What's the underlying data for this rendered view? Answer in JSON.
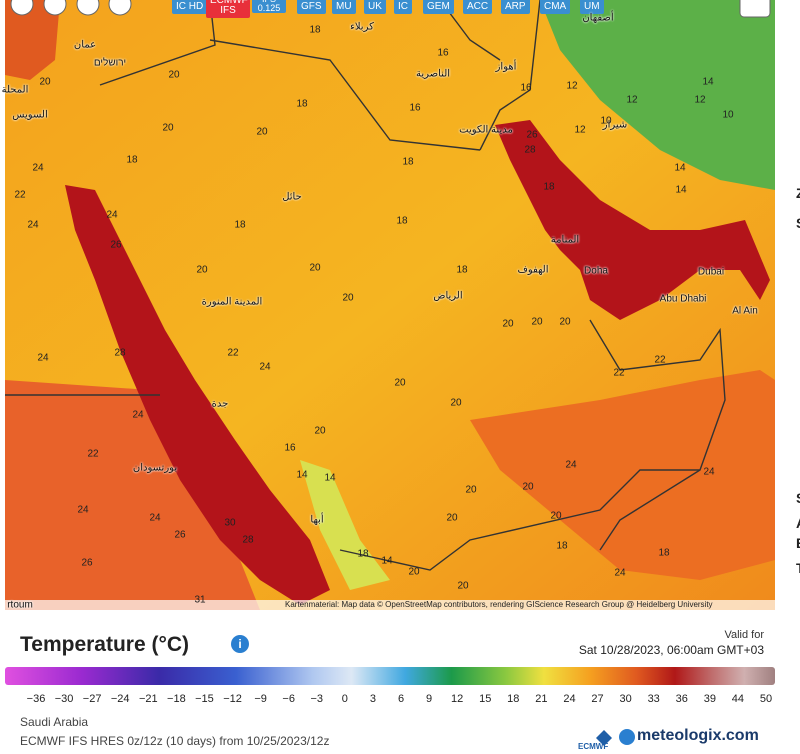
{
  "toolbar": {
    "models": [
      "IC HD",
      "ECMWF IFS",
      "IFS 0.125",
      "GFS",
      "MU",
      "UK",
      "IC",
      "GEM",
      "ACC",
      "ARP",
      "CMA",
      "UM"
    ]
  },
  "map": {
    "cities": [
      "عمان",
      "ירושלים",
      "المحلة",
      "السويس",
      "كربلاء",
      "أصفهان",
      "الناصرية",
      "أهواز",
      "شيراز",
      "مدينة الكويت",
      "حائل",
      "المنامة",
      "الهفوف",
      "Doha",
      "Dubai",
      "Abu Dhabi",
      "Al Ain",
      "الرياض",
      "المدينة المنورة",
      "جدة",
      "بورتسودان",
      "أبها",
      "rtoum"
    ],
    "temperature_labels": [
      "18",
      "20",
      "20",
      "18",
      "20",
      "20",
      "18",
      "18",
      "16",
      "24",
      "24",
      "22",
      "24",
      "18",
      "20",
      "20",
      "20",
      "18",
      "18",
      "20",
      "20",
      "20",
      "18",
      "26",
      "28",
      "16",
      "16",
      "12",
      "12",
      "14",
      "14",
      "12",
      "14",
      "10",
      "10",
      "12",
      "28",
      "24",
      "26",
      "22",
      "24",
      "20",
      "20",
      "20",
      "16",
      "22",
      "22",
      "24",
      "24",
      "20",
      "20",
      "20",
      "20",
      "18",
      "18",
      "24",
      "24",
      "22",
      "24",
      "24",
      "26",
      "30",
      "28",
      "14",
      "14",
      "18",
      "14",
      "20",
      "20",
      "26",
      "31"
    ],
    "attribution": "Kartenmaterial: Map data © OpenStreetMap contributors, rendering GIScience Research Group @ Heidelberg University"
  },
  "legend": {
    "title": "Temperature (°C)",
    "valid_label": "Valid for",
    "valid_time": "Sat 10/28/2023, 06:00am GMT+03",
    "scale": [
      "−36",
      "−30",
      "−27",
      "−24",
      "−21",
      "−18",
      "−15",
      "−12",
      "−9",
      "−6",
      "−3",
      "0",
      "3",
      "6",
      "9",
      "12",
      "15",
      "18",
      "21",
      "24",
      "27",
      "30",
      "33",
      "36",
      "39",
      "44",
      "50"
    ]
  },
  "footer": {
    "region": "Saudi Arabia",
    "model_run": "ECMWF IFS HRES 0z/12z (10 days) from 10/25/2023/12z",
    "ecmwf_logo": "ECMWF",
    "brand": "meteologix.com"
  },
  "sidebar": [
    "Z",
    "S",
    "S",
    "A",
    "E",
    "T"
  ]
}
